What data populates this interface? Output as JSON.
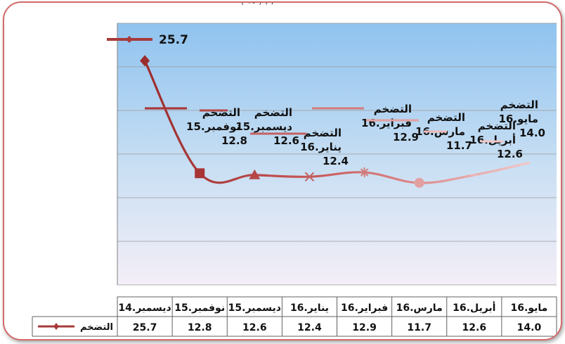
{
  "header_fragment": "( % ) ,           ,      ",
  "chart_data": {
    "type": "line",
    "categories": [
      "دیسمبر.14",
      "نوفمبر.15",
      "دیسمبر.15",
      "ینایر.16",
      "فبرایر.16",
      "مارس.16",
      "أبریل.16",
      "مایو.16"
    ],
    "series": [
      {
        "name": "التضخم",
        "values": [
          25.7,
          12.8,
          12.6,
          12.4,
          12.9,
          11.7,
          12.6,
          14.0
        ]
      }
    ],
    "ylim": [
      0,
      30
    ],
    "grid": true,
    "legend_position": "top-left",
    "legend_value": "25.7",
    "table_row_label": "التضخم",
    "data_labels": [
      "25.7",
      "التضخم, نوفمبر.15, 12.8",
      "التضخم, دیسمبر.15, 12.6",
      "التضخم, ینایر.16, 12.4",
      "التضخم, فبرایر.16, 12.9",
      "التضخم, مارس.16, 11.7",
      "التضخم, أبریل.16, 12.6",
      "التضخم, مایو.16, 14.0"
    ],
    "value_strings": [
      "25.7",
      "12.8",
      "12.6",
      "12.4",
      "12.9",
      "11.7",
      "12.6",
      "14.0"
    ],
    "colors": {
      "line_start": "#9b2c2c",
      "line_end": "#f2c6c6",
      "legend_marker": "#a83a3a",
      "plot_top": "#8fc3ef",
      "plot_bottom": "#f4eef7",
      "border": "#d46a6a"
    }
  }
}
